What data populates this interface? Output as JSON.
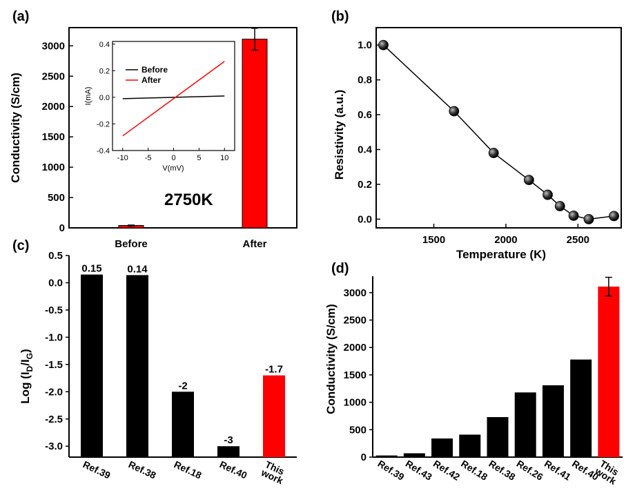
{
  "chart_data": [
    {
      "id": "a",
      "panel_label": "(a)",
      "type": "bar",
      "categories": [
        "Before",
        "After"
      ],
      "values": [
        40,
        3110
      ],
      "errors": [
        6,
        180
      ],
      "colors": [
        "#ff0000",
        "#ff0000"
      ],
      "ylabel": "Conductivity (S/cm)",
      "ylim": [
        0,
        3300
      ],
      "yticks": [
        0,
        500,
        1000,
        1500,
        2000,
        2500,
        3000
      ],
      "annotation": "2750K",
      "inset": {
        "type": "line",
        "xlabel": "V(mV)",
        "ylabel": "I(mA)",
        "xlim": [
          -12,
          12
        ],
        "ylim": [
          -0.4,
          0.42
        ],
        "xticks": [
          -10,
          -5,
          0,
          5,
          10
        ],
        "yticks": [
          -0.4,
          -0.2,
          0.0,
          0.2,
          0.4
        ],
        "series": [
          {
            "name": "Before",
            "color": "#000000",
            "x": [
              -10,
              10
            ],
            "y": [
              -0.01,
              0.01
            ]
          },
          {
            "name": "After",
            "color": "#ff0000",
            "x": [
              -10,
              10
            ],
            "y": [
              -0.29,
              0.27
            ]
          }
        ]
      }
    },
    {
      "id": "b",
      "panel_label": "(b)",
      "type": "line",
      "xlabel": "Temperature (K)",
      "ylabel": "Resistivity (a.u.)",
      "xlim": [
        1100,
        2800
      ],
      "ylim": [
        -0.05,
        1.1
      ],
      "xticks": [
        1500,
        2000,
        2500
      ],
      "yticks": [
        0.0,
        0.2,
        0.4,
        0.6,
        0.8,
        1.0
      ],
      "series": [
        {
          "name": "Resistivity",
          "x": [
            1150,
            1640,
            1915,
            2160,
            2290,
            2375,
            2470,
            2575,
            2750
          ],
          "y": [
            1.0,
            0.62,
            0.38,
            0.225,
            0.14,
            0.075,
            0.02,
            0.0,
            0.018
          ]
        }
      ]
    },
    {
      "id": "c",
      "panel_label": "(c)",
      "type": "bar",
      "categories": [
        "Ref.39",
        "Ref.38",
        "Ref.18",
        "Ref.40",
        "This\nwork"
      ],
      "values": [
        0.15,
        0.14,
        -2,
        -3,
        -1.7
      ],
      "data_labels": [
        "0.15",
        "0.14",
        "-2",
        "-3",
        "-1.7"
      ],
      "colors": [
        "#000000",
        "#000000",
        "#000000",
        "#000000",
        "#ff0000"
      ],
      "ylabel": "Log (I_D/I_G)",
      "ylim": [
        -3.2,
        0.5
      ],
      "yticks": [
        0.5,
        0.0,
        -0.5,
        -1.0,
        -1.5,
        -2.0,
        -2.5,
        -3.0
      ]
    },
    {
      "id": "d",
      "panel_label": "(d)",
      "type": "bar",
      "categories": [
        "Ref.39",
        "Ref.43",
        "Ref.42",
        "Ref.18",
        "Ref.38",
        "Ref.26",
        "Ref.41",
        "Ref.40",
        "This\nwork"
      ],
      "values": [
        30,
        70,
        340,
        410,
        730,
        1180,
        1310,
        1780,
        3110
      ],
      "error_last": 170,
      "colors": [
        "#000000",
        "#000000",
        "#000000",
        "#000000",
        "#000000",
        "#000000",
        "#000000",
        "#000000",
        "#ff0000"
      ],
      "ylabel": "Conductivity (S/cm)",
      "ylim": [
        0,
        3300
      ],
      "yticks": [
        0,
        500,
        1000,
        1500,
        2000,
        2500,
        3000
      ]
    }
  ]
}
